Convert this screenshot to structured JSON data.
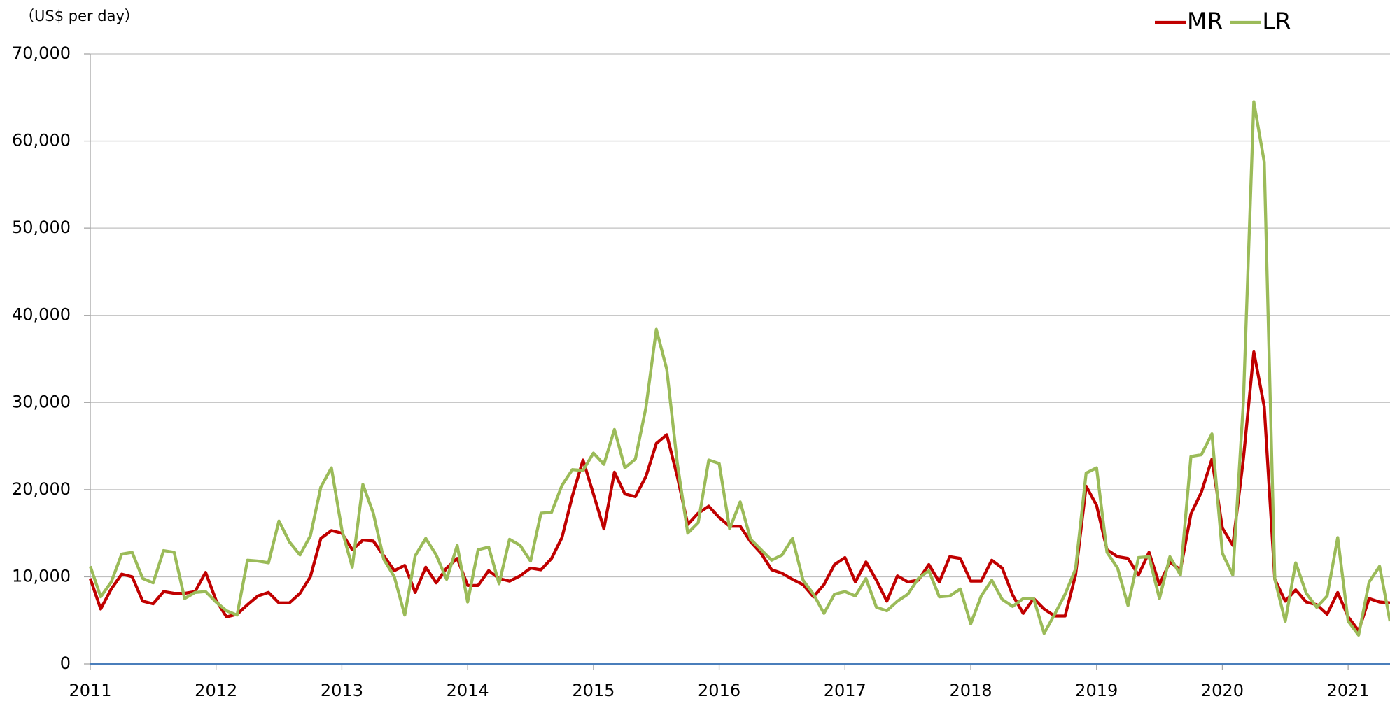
{
  "chart_data": {
    "type": "line",
    "unit_label": "（US$ per day）",
    "legend": "upper right",
    "grid": true,
    "xlim": [
      2011,
      2021.333
    ],
    "xticks": [
      2011,
      2012,
      2013,
      2014,
      2015,
      2016,
      2017,
      2018,
      2019,
      2020,
      2021
    ],
    "ylim": [
      0,
      70000
    ],
    "yticks": [
      0,
      {
        "value": 10000,
        "label": "10,000"
      },
      {
        "value": 20000,
        "label": "20,000"
      },
      {
        "value": 30000,
        "label": "30,000"
      },
      {
        "value": 40000,
        "label": "40,000"
      },
      {
        "value": 50000,
        "label": "50,000"
      },
      {
        "value": 60000,
        "label": "60,000"
      },
      {
        "value": 70000,
        "label": "70,000"
      }
    ],
    "x": [
      2011,
      2011.083,
      2011.167,
      2011.25,
      2011.333,
      2011.417,
      2011.5,
      2011.583,
      2011.667,
      2011.75,
      2011.833,
      2011.917,
      2012,
      2012.083,
      2012.167,
      2012.25,
      2012.333,
      2012.417,
      2012.5,
      2012.583,
      2012.667,
      2012.75,
      2012.833,
      2012.917,
      2013,
      2013.083,
      2013.167,
      2013.25,
      2013.333,
      2013.417,
      2013.5,
      2013.583,
      2013.667,
      2013.75,
      2013.833,
      2013.917,
      2014,
      2014.083,
      2014.167,
      2014.25,
      2014.333,
      2014.417,
      2014.5,
      2014.583,
      2014.667,
      2014.75,
      2014.833,
      2014.917,
      2015,
      2015.083,
      2015.167,
      2015.25,
      2015.333,
      2015.417,
      2015.5,
      2015.583,
      2015.667,
      2015.75,
      2015.833,
      2015.917,
      2016,
      2016.083,
      2016.167,
      2016.25,
      2016.333,
      2016.417,
      2016.5,
      2016.583,
      2016.667,
      2016.75,
      2016.833,
      2016.917,
      2017,
      2017.083,
      2017.167,
      2017.25,
      2017.333,
      2017.417,
      2017.5,
      2017.583,
      2017.667,
      2017.75,
      2017.833,
      2017.917,
      2018,
      2018.083,
      2018.167,
      2018.25,
      2018.333,
      2018.417,
      2018.5,
      2018.583,
      2018.667,
      2018.75,
      2018.833,
      2018.917,
      2019,
      2019.083,
      2019.167,
      2019.25,
      2019.333,
      2019.417,
      2019.5,
      2019.583,
      2019.667,
      2019.75,
      2019.833,
      2019.917,
      2020,
      2020.083,
      2020.167,
      2020.25,
      2020.333,
      2020.417,
      2020.5,
      2020.583,
      2020.667,
      2020.75,
      2020.833,
      2020.917,
      2021,
      2021.083,
      2021.167,
      2021.25,
      2021.333
    ],
    "series": [
      {
        "name": "MR",
        "color": "#c00000",
        "values": [
          9800,
          6300,
          8600,
          10300,
          10000,
          7200,
          6900,
          8300,
          8100,
          8100,
          8300,
          10500,
          7300,
          5400,
          5700,
          6800,
          7800,
          8200,
          7000,
          7000,
          8100,
          10000,
          14400,
          15300,
          15000,
          13100,
          14200,
          14100,
          12400,
          10700,
          11300,
          8200,
          11100,
          9300,
          11000,
          12100,
          9000,
          9000,
          10700,
          9800,
          9500,
          10100,
          11000,
          10800,
          12100,
          14500,
          19300,
          23400,
          19500,
          15500,
          22000,
          19500,
          19200,
          21500,
          25300,
          26300,
          21500,
          16000,
          17300,
          18100,
          16800,
          15800,
          15800,
          14000,
          12700,
          10800,
          10400,
          9700,
          9100,
          7700,
          9100,
          11400,
          12200,
          9400,
          11700,
          9600,
          7200,
          10100,
          9400,
          9600,
          11400,
          9400,
          12300,
          12100,
          9500,
          9500,
          11900,
          11000,
          7900,
          5800,
          7500,
          6300,
          5500,
          5500,
          10200,
          20400,
          18200,
          13100,
          12300,
          12100,
          10200,
          12800,
          9100,
          11700,
          10800,
          17200,
          19700,
          23500,
          15600,
          13600,
          23500,
          35800,
          29500,
          9700,
          7200,
          8500,
          7100,
          6800,
          5700,
          8200,
          5400,
          3800,
          7500,
          7100,
          7000
        ]
      },
      {
        "name": "LR",
        "color": "#9bbb59",
        "values": [
          11200,
          7700,
          9400,
          12600,
          12800,
          9800,
          9300,
          13000,
          12800,
          7500,
          8200,
          8300,
          7100,
          6100,
          5600,
          11900,
          11800,
          11600,
          16400,
          14000,
          12500,
          14700,
          20300,
          22500,
          15400,
          11100,
          20600,
          17300,
          12000,
          10000,
          5600,
          12400,
          14400,
          12500,
          9700,
          13600,
          7100,
          13100,
          13400,
          9200,
          14300,
          13600,
          11800,
          17300,
          17400,
          20500,
          22300,
          22200,
          24200,
          22900,
          26900,
          22500,
          23500,
          29400,
          38400,
          33800,
          23000,
          15000,
          16200,
          23400,
          23000,
          15500,
          18600,
          14300,
          13100,
          11900,
          12500,
          14400,
          9600,
          8000,
          5800,
          8000,
          8300,
          7800,
          9800,
          6500,
          6100,
          7200,
          8000,
          9800,
          10700,
          7700,
          7800,
          8600,
          4600,
          7800,
          9600,
          7400,
          6600,
          7500,
          7500,
          3500,
          5700,
          8000,
          10900,
          21900,
          22500,
          12800,
          11000,
          6700,
          12200,
          12300,
          7500,
          12300,
          10200,
          23800,
          24000,
          26400,
          12700,
          10200,
          30000,
          64500,
          57600,
          9700,
          4900,
          11600,
          8100,
          6500,
          7800,
          14500,
          4900,
          3300,
          9400,
          11200,
          4900
        ]
      }
    ]
  }
}
